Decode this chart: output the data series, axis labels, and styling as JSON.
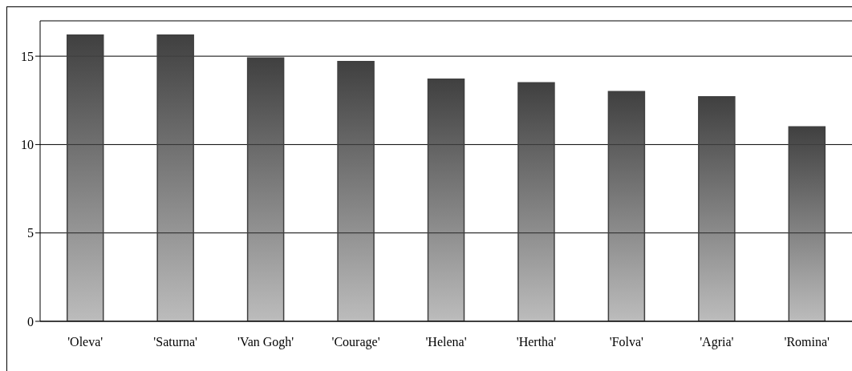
{
  "chart_data": {
    "type": "bar",
    "categories": [
      "'Oleva'",
      "'Saturna'",
      "'Van Gogh'",
      "'Courage'",
      "'Helena'",
      "'Hertha'",
      "'Folva'",
      "'Agria'",
      "'Romina'"
    ],
    "values": [
      16.2,
      16.2,
      14.9,
      14.7,
      13.7,
      13.5,
      13.0,
      12.7,
      11.0
    ],
    "color": "#404040",
    "ylim": [
      0,
      17
    ],
    "yticks": [
      0,
      5,
      10,
      15
    ],
    "grid": "y"
  }
}
